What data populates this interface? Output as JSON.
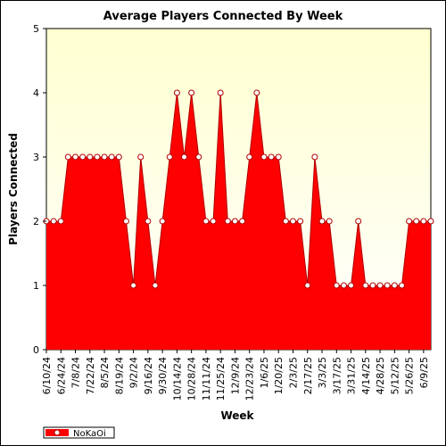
{
  "chart_data": {
    "type": "area",
    "title": "Average Players Connected By Week",
    "xlabel": "Week",
    "ylabel": "Players Connected",
    "ylim": [
      0,
      5
    ],
    "yticks": [
      "0",
      "1",
      "2",
      "3",
      "4",
      "5"
    ],
    "grid": false,
    "legend_position": "bottom-left",
    "x": [
      "6/10/24",
      "6/17/24",
      "6/24/24",
      "7/1/24",
      "7/8/24",
      "7/15/24",
      "7/22/24",
      "7/29/24",
      "8/5/24",
      "8/12/24",
      "8/19/24",
      "8/26/24",
      "9/2/24",
      "9/9/24",
      "9/16/24",
      "9/23/24",
      "9/30/24",
      "10/7/24",
      "10/14/24",
      "10/21/24",
      "10/28/24",
      "11/4/24",
      "11/11/24",
      "11/18/24",
      "11/25/24",
      "12/2/24",
      "12/9/24",
      "12/16/24",
      "12/23/24",
      "12/30/24",
      "1/6/25",
      "1/13/25",
      "1/20/25",
      "1/27/25",
      "2/3/25",
      "2/10/25",
      "2/17/25",
      "2/24/25",
      "3/3/25",
      "3/10/25",
      "3/17/25",
      "3/24/25",
      "3/31/25",
      "4/7/25",
      "4/14/25",
      "4/21/25",
      "4/28/25",
      "5/5/25",
      "5/12/25",
      "5/19/25",
      "5/26/25",
      "6/2/25",
      "6/9/25",
      "6/16/25"
    ],
    "x_tick_labels": [
      "6/10/24",
      "6/24/24",
      "7/8/24",
      "7/22/24",
      "8/5/24",
      "8/19/24",
      "9/2/24",
      "9/16/24",
      "9/30/24",
      "10/14/24",
      "10/28/24",
      "11/11/24",
      "11/25/24",
      "12/9/24",
      "12/23/24",
      "1/6/25",
      "1/20/25",
      "2/3/25",
      "2/17/25",
      "3/3/25",
      "3/17/25",
      "3/31/25",
      "4/14/25",
      "4/28/25",
      "5/12/25",
      "5/26/25",
      "6/9/25"
    ],
    "series": [
      {
        "name": "NoKaOi",
        "values": [
          2,
          2,
          2,
          3,
          3,
          3,
          3,
          3,
          3,
          3,
          3,
          2,
          1,
          3,
          2,
          1,
          2,
          3,
          4,
          3,
          4,
          3,
          2,
          2,
          4,
          2,
          2,
          2,
          3,
          4,
          3,
          3,
          3,
          2,
          2,
          2,
          1,
          3,
          2,
          2,
          1,
          1,
          1,
          2,
          1,
          1,
          1,
          1,
          1,
          1,
          2,
          2,
          2,
          2
        ]
      }
    ],
    "colors": {
      "plot_background_top": "#ffffd0",
      "plot_background_bottom": "#ffffff",
      "area_fill": "#ff0000",
      "area_line": "#b00000",
      "marker_fill": "#ffffff"
    }
  }
}
